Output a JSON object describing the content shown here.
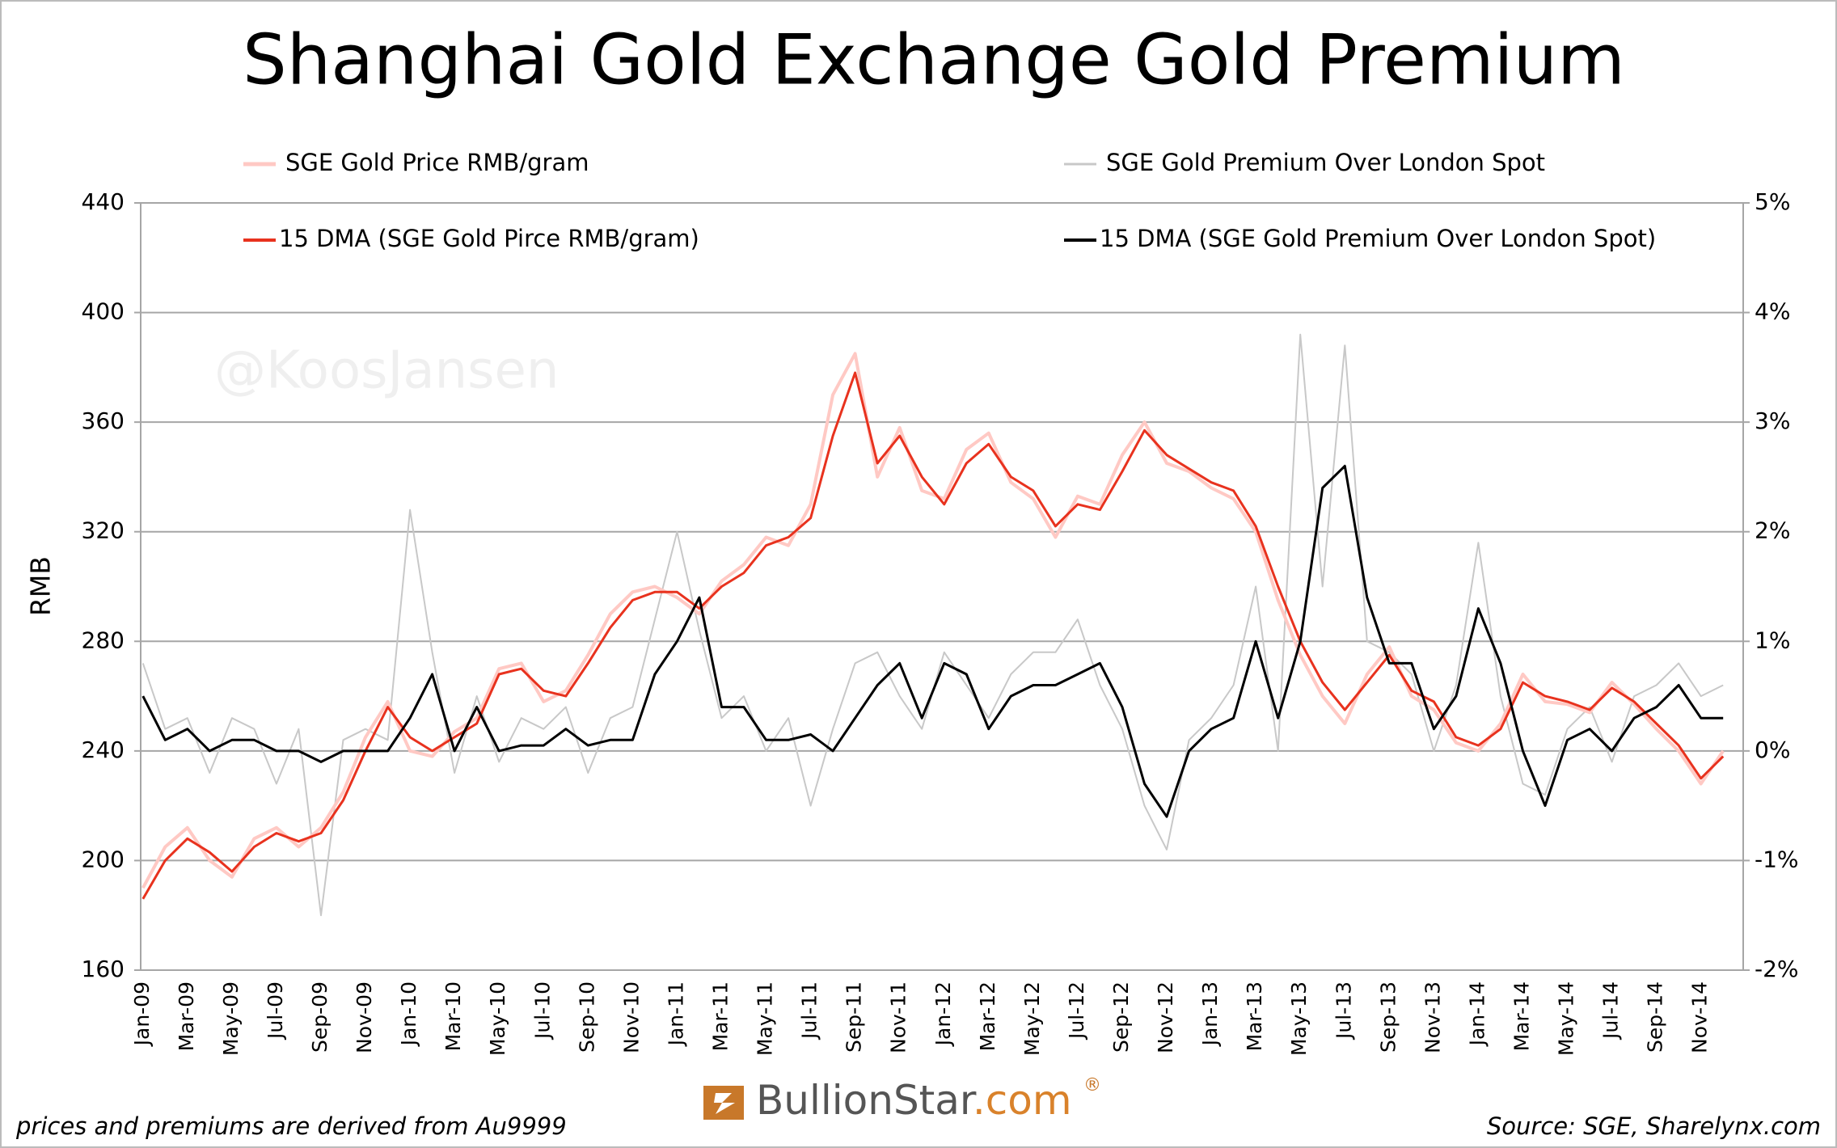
{
  "chart_data": {
    "type": "line",
    "title": "Shanghai Gold Exchange Gold Premium",
    "ylabel": "RMB",
    "watermark": "@KoosJansen",
    "footnote": "prices and premiums are derived from Au9999",
    "source": "Source: SGE, Sharelynx.com",
    "logo": {
      "name": "BullionStar",
      "suffix": ".com",
      "mark": "®"
    },
    "categories": [
      "Jan-09",
      null,
      "Mar-09",
      null,
      "May-09",
      null,
      "Jul-09",
      null,
      "Sep-09",
      null,
      "Nov-09",
      null,
      "Jan-10",
      null,
      "Mar-10",
      null,
      "May-10",
      null,
      "Jul-10",
      null,
      "Sep-10",
      null,
      "Nov-10",
      null,
      "Jan-11",
      null,
      "Mar-11",
      null,
      "May-11",
      null,
      "Jul-11",
      null,
      "Sep-11",
      null,
      "Nov-11",
      null,
      "Jan-12",
      null,
      "Mar-12",
      null,
      "May-12",
      null,
      "Jul-12",
      null,
      "Sep-12",
      null,
      "Nov-12",
      null,
      "Jan-13",
      null,
      "Mar-13",
      null,
      "May-13",
      null,
      "Jul-13",
      null,
      "Sep-13",
      null,
      "Nov-13",
      null,
      "Jan-14",
      null,
      "Mar-14",
      null,
      "May-14",
      null,
      "Jul-14",
      null,
      "Sep-14",
      null,
      "Nov-14",
      null
    ],
    "series": [
      {
        "name": "SGE Gold Premium Over London Spot",
        "color": "#c8c8c8",
        "axis": "y2",
        "width": 2,
        "values": [
          0.8,
          0.2,
          0.3,
          -0.2,
          0.3,
          0.2,
          -0.3,
          0.2,
          -1.5,
          0.1,
          0.2,
          0.1,
          2.2,
          0.9,
          -0.2,
          0.5,
          -0.1,
          0.3,
          0.2,
          0.4,
          -0.2,
          0.3,
          0.4,
          1.2,
          2.0,
          1.1,
          0.3,
          0.5,
          0.0,
          0.3,
          -0.5,
          0.2,
          0.8,
          0.9,
          0.5,
          0.2,
          0.9,
          0.6,
          0.3,
          0.7,
          0.9,
          0.9,
          1.2,
          0.6,
          0.2,
          -0.5,
          -0.9,
          0.1,
          0.3,
          0.6,
          1.5,
          0.0,
          3.8,
          1.5,
          3.7,
          1.0,
          0.9,
          0.7,
          0.0,
          0.6,
          1.9,
          0.5,
          -0.3,
          -0.4,
          0.2,
          0.4,
          -0.1,
          0.5,
          0.6,
          0.8,
          0.5,
          0.6
        ]
      },
      {
        "name": "SGE Gold Price RMB/gram",
        "color": "#ffc9c4",
        "width": 4,
        "values": [
          190,
          205,
          212,
          200,
          194,
          208,
          212,
          205,
          212,
          225,
          245,
          258,
          240,
          238,
          247,
          252,
          270,
          272,
          258,
          262,
          275,
          290,
          298,
          300,
          296,
          290,
          302,
          308,
          318,
          315,
          330,
          370,
          385,
          340,
          358,
          335,
          332,
          350,
          356,
          338,
          332,
          318,
          333,
          330,
          348,
          360,
          345,
          342,
          336,
          332,
          320,
          295,
          275,
          260,
          250,
          268,
          278,
          260,
          255,
          243,
          240,
          250,
          268,
          258,
          257,
          254,
          265,
          257,
          248,
          240,
          228,
          240
        ]
      },
      {
        "name": "15 DMA (SGE Gold Pirce RMB/gram)",
        "color": "#e8321e",
        "width": 3,
        "values": [
          186,
          200,
          208,
          203,
          196,
          205,
          210,
          207,
          210,
          222,
          240,
          256,
          245,
          240,
          245,
          250,
          268,
          270,
          262,
          260,
          272,
          285,
          295,
          298,
          298,
          292,
          300,
          305,
          315,
          318,
          325,
          355,
          378,
          345,
          355,
          340,
          330,
          345,
          352,
          340,
          335,
          322,
          330,
          328,
          342,
          357,
          348,
          343,
          338,
          335,
          322,
          300,
          280,
          265,
          255,
          265,
          275,
          262,
          258,
          245,
          242,
          248,
          265,
          260,
          258,
          255,
          263,
          258,
          250,
          242,
          230,
          238
        ]
      },
      {
        "name": "15 DMA (SGE Gold Premium Over London Spot)",
        "color": "#000000",
        "axis": "y2",
        "width": 3,
        "values": [
          0.5,
          0.1,
          0.2,
          0.0,
          0.1,
          0.1,
          0.0,
          0.0,
          -0.1,
          0.0,
          0.0,
          0.0,
          0.3,
          0.7,
          0.0,
          0.4,
          0.0,
          0.05,
          0.05,
          0.2,
          0.05,
          0.1,
          0.1,
          0.7,
          1.0,
          1.4,
          0.4,
          0.4,
          0.1,
          0.1,
          0.15,
          0.0,
          0.3,
          0.6,
          0.8,
          0.3,
          0.8,
          0.7,
          0.2,
          0.5,
          0.6,
          0.6,
          0.7,
          0.8,
          0.4,
          -0.3,
          -0.6,
          0.0,
          0.2,
          0.3,
          1.0,
          0.3,
          1.0,
          2.4,
          2.6,
          1.4,
          0.8,
          0.8,
          0.2,
          0.5,
          1.3,
          0.8,
          0.0,
          -0.5,
          0.1,
          0.2,
          0.0,
          0.3,
          0.4,
          0.6,
          0.3,
          0.3
        ]
      }
    ],
    "ylim": [
      160,
      440
    ],
    "yticks": [
      160,
      200,
      240,
      280,
      320,
      360,
      400,
      440
    ],
    "y2lim": [
      -2,
      5
    ],
    "y2ticks": [
      {
        "value": -2,
        "label": "-2%"
      },
      {
        "value": -1,
        "label": "-1%"
      },
      {
        "value": 0,
        "label": "0%"
      },
      {
        "value": 1,
        "label": "1%"
      },
      {
        "value": 2,
        "label": "2%"
      },
      {
        "value": 3,
        "label": "3%"
      },
      {
        "value": 4,
        "label": "4%"
      },
      {
        "value": 5,
        "label": "5%"
      }
    ],
    "grid": true
  }
}
